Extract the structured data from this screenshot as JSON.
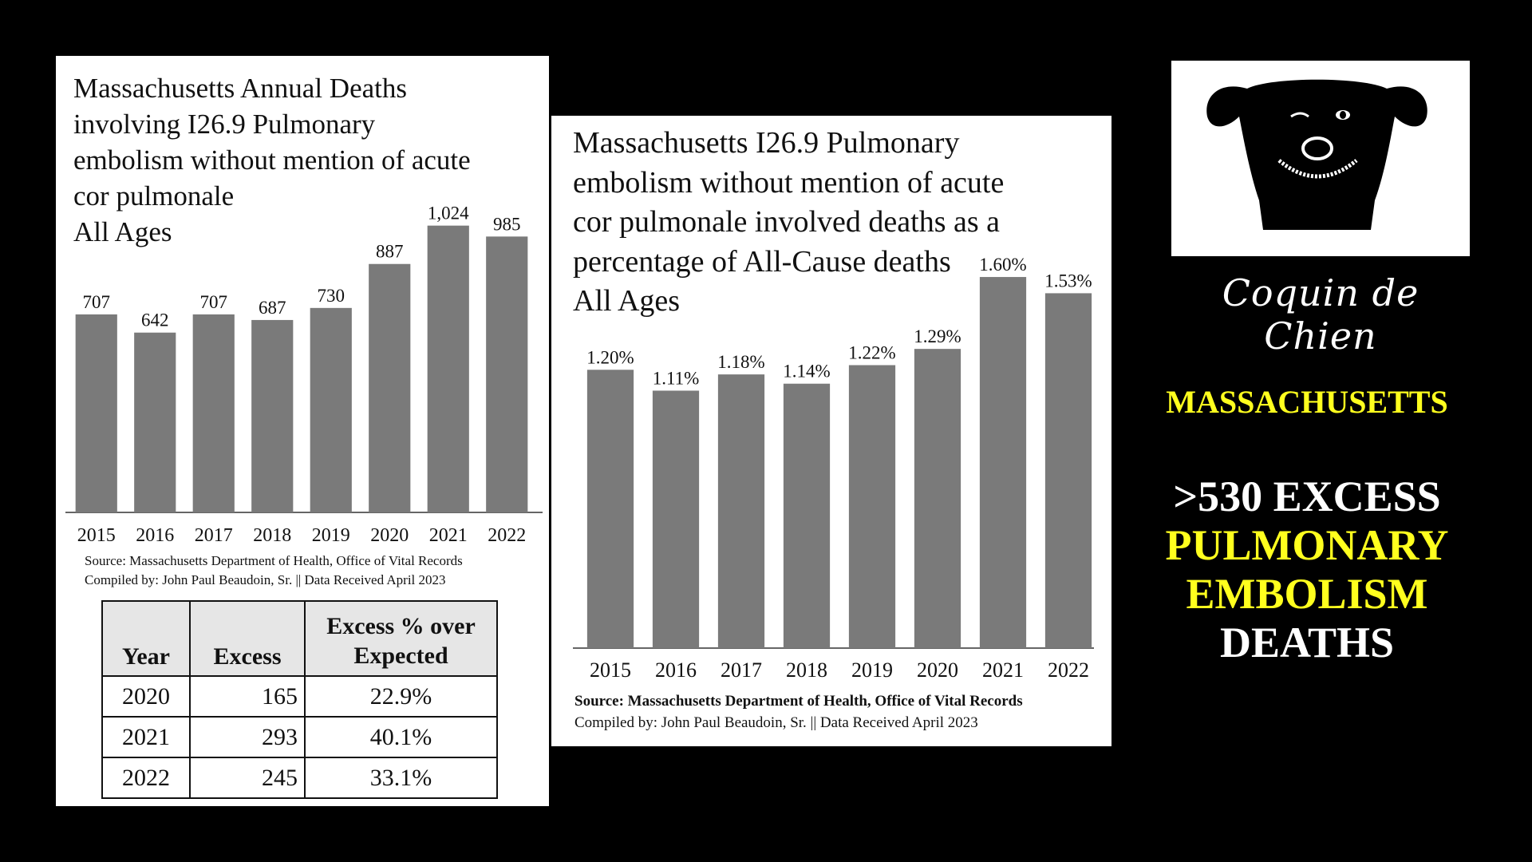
{
  "colors": {
    "background": "#000000",
    "bar": "#7a7a7a",
    "accent_yellow": "#ffff1e",
    "panel": "#ffffff"
  },
  "chart_data": [
    {
      "type": "bar",
      "title_lines": [
        "Massachusetts Annual Deaths",
        "involving I26.9 Pulmonary",
        "embolism without mention of acute",
        "cor pulmonale",
        "All Ages"
      ],
      "categories": [
        "2015",
        "2016",
        "2017",
        "2018",
        "2019",
        "2020",
        "2021",
        "2022"
      ],
      "values": [
        707,
        642,
        707,
        687,
        730,
        887,
        1024,
        985
      ],
      "value_labels": [
        "707",
        "642",
        "707",
        "687",
        "730",
        "887",
        "1,024",
        "985"
      ],
      "ylim": [
        0,
        1100
      ],
      "grid": false,
      "source": "Source:  Massachusetts Department of Health, Office of Vital Records",
      "compiled": "Compiled by:  John Paul Beaudoin, Sr. || Data Received April 2023"
    },
    {
      "type": "bar",
      "title_lines": [
        "Massachusetts I26.9 Pulmonary",
        "embolism without mention of acute",
        "cor pulmonale involved deaths as a",
        "percentage of All-Cause deaths",
        "All Ages"
      ],
      "categories": [
        "2015",
        "2016",
        "2017",
        "2018",
        "2019",
        "2020",
        "2021",
        "2022"
      ],
      "values": [
        1.2,
        1.11,
        1.18,
        1.14,
        1.22,
        1.29,
        1.6,
        1.53
      ],
      "value_labels": [
        "1.20%",
        "1.11%",
        "1.18%",
        "1.14%",
        "1.22%",
        "1.29%",
        "1.60%",
        "1.53%"
      ],
      "ylim": [
        0,
        1.7
      ],
      "grid": false,
      "source": "Source:  Massachusetts Department of Health, Office of Vital Records",
      "compiled": "Compiled by:  John Paul Beaudoin, Sr. || Data Received April 2023"
    }
  ],
  "excess_table": {
    "headers": [
      "Year",
      "Excess",
      "Excess % over",
      "Expected"
    ],
    "rows": [
      {
        "year": "2020",
        "excess": "165",
        "pct": "22.9%"
      },
      {
        "year": "2021",
        "excess": "293",
        "pct": "40.1%"
      },
      {
        "year": "2022",
        "excess": "245",
        "pct": "33.1%"
      }
    ]
  },
  "logo": {
    "icon": "dog-face-icon"
  },
  "brand": "Coquin de Chien",
  "state": "MASSACHUSETTS",
  "headline": [
    ">530 EXCESS",
    "PULMONARY",
    "EMBOLISM",
    "DEATHS"
  ]
}
